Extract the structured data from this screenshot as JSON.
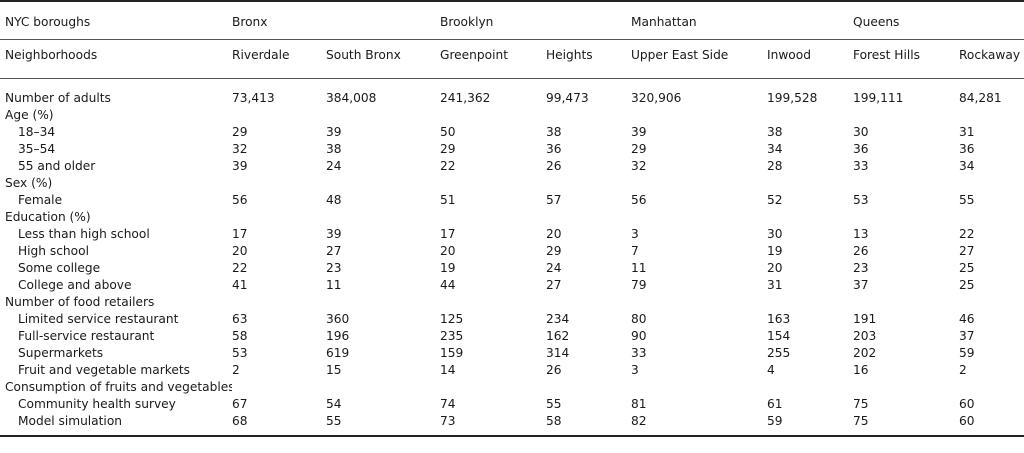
{
  "header": {
    "boroughs_label": "NYC boroughs",
    "neighborhoods_label": "Neighborhoods",
    "boroughs": [
      "Bronx",
      "Brooklyn",
      "Manhattan",
      "Queens"
    ],
    "neighborhoods": [
      "Riverdale",
      "South Bronx",
      "Greenpoint",
      "Heights",
      "Upper East Side",
      "Inwood",
      "Forest Hills",
      "Rockaway"
    ]
  },
  "rows": [
    {
      "label": "Number of adults",
      "indent": false,
      "values": [
        "73,413",
        "384,008",
        "241,362",
        "99,473",
        "320,906",
        "199,528",
        "199,111",
        "84,281"
      ]
    },
    {
      "label": "Age (%)",
      "indent": false,
      "values": []
    },
    {
      "label": "18–34",
      "indent": true,
      "values": [
        "29",
        "39",
        "50",
        "38",
        "39",
        "38",
        "30",
        "31"
      ]
    },
    {
      "label": "35–54",
      "indent": true,
      "values": [
        "32",
        "38",
        "29",
        "36",
        "29",
        "34",
        "36",
        "36"
      ]
    },
    {
      "label": "55 and older",
      "indent": true,
      "values": [
        "39",
        "24",
        "22",
        "26",
        "32",
        "28",
        "33",
        "34"
      ]
    },
    {
      "label": "Sex (%)",
      "indent": false,
      "values": []
    },
    {
      "label": "Female",
      "indent": true,
      "values": [
        "56",
        "48",
        "51",
        "57",
        "56",
        "52",
        "53",
        "55"
      ]
    },
    {
      "label": "Education (%)",
      "indent": false,
      "values": []
    },
    {
      "label": "Less than high school",
      "indent": true,
      "values": [
        "17",
        "39",
        "17",
        "20",
        "3",
        "30",
        "13",
        "22"
      ]
    },
    {
      "label": "High school",
      "indent": true,
      "values": [
        "20",
        "27",
        "20",
        "29",
        "7",
        "19",
        "26",
        "27"
      ]
    },
    {
      "label": "Some college",
      "indent": true,
      "values": [
        "22",
        "23",
        "19",
        "24",
        "11",
        "20",
        "23",
        "25"
      ]
    },
    {
      "label": "College and above",
      "indent": true,
      "values": [
        "41",
        "11",
        "44",
        "27",
        "79",
        "31",
        "37",
        "25"
      ]
    },
    {
      "label": "Number of food retailers",
      "indent": false,
      "values": []
    },
    {
      "label": "Limited service restaurant",
      "indent": true,
      "values": [
        "63",
        "360",
        "125",
        "234",
        "80",
        "163",
        "191",
        "46"
      ]
    },
    {
      "label": "Full-service restaurant",
      "indent": true,
      "values": [
        "58",
        "196",
        "235",
        "162",
        "90",
        "154",
        "203",
        "37"
      ]
    },
    {
      "label": "Supermarkets",
      "indent": true,
      "values": [
        "53",
        "619",
        "159",
        "314",
        "33",
        "255",
        "202",
        "59"
      ]
    },
    {
      "label": "Fruit and vegetable markets",
      "indent": true,
      "values": [
        "2",
        "15",
        "14",
        "26",
        "3",
        "4",
        "16",
        "2"
      ]
    },
    {
      "label": "Consumption of fruits and vegetables (%)",
      "indent": false,
      "values": []
    },
    {
      "label": "Community health survey",
      "indent": true,
      "values": [
        "67",
        "54",
        "74",
        "55",
        "81",
        "61",
        "75",
        "60"
      ]
    },
    {
      "label": "Model simulation",
      "indent": true,
      "values": [
        "68",
        "55",
        "73",
        "58",
        "82",
        "59",
        "75",
        "60"
      ]
    }
  ]
}
